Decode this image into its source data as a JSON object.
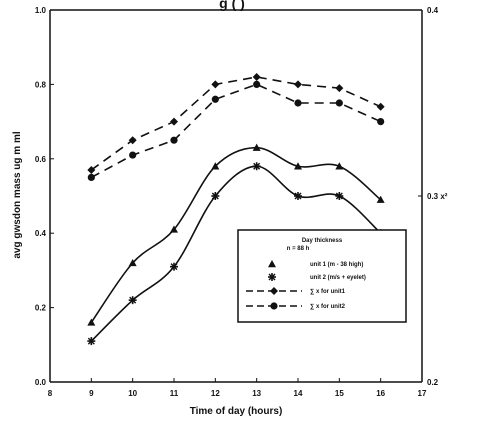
{
  "chart_data": {
    "type": "line",
    "title": "g (  )",
    "xlabel": "Time of day (hours)",
    "ylabel": "avg gwsdon mass ug m ml",
    "y2label": "0.3 x²",
    "xlim": [
      8,
      17
    ],
    "ylim": [
      0,
      1.0
    ],
    "y2lim": [
      0.2,
      0.4
    ],
    "x_ticks": [
      8,
      9,
      10,
      11,
      12,
      13,
      14,
      15,
      16,
      17
    ],
    "x_tick_labels": [
      "8",
      "9",
      "10",
      "11",
      "12",
      "13",
      "14",
      "15",
      "16",
      "17"
    ],
    "y_ticks": [
      0,
      0.2,
      0.4,
      0.6,
      0.8,
      1.0
    ],
    "y_tick_labels": [
      "0.0",
      "0.2",
      "0.4",
      "0.6",
      "0.8",
      "1.0"
    ],
    "y2_ticks": [
      0.2,
      0.3,
      0.4
    ],
    "y2_tick_labels": [
      "0.2",
      "0.3 x²",
      "0.4"
    ],
    "grid": false,
    "legend_position": "lower-right",
    "legend_title": "Day thickness",
    "legend_subtitle": "n = 88 h",
    "series": [
      {
        "name": "unit 1 (m - 38 high)",
        "marker": "triangle",
        "dash": "solid",
        "x": [
          9,
          10,
          11,
          12,
          13,
          14,
          15,
          16
        ],
        "y": [
          0.16,
          0.32,
          0.41,
          0.58,
          0.63,
          0.58,
          0.58,
          0.49
        ]
      },
      {
        "name": "unit 2 (m/s + eyelet)",
        "marker": "star",
        "dash": "solid",
        "x": [
          9,
          10,
          11,
          12,
          13,
          14,
          15,
          16
        ],
        "y": [
          0.11,
          0.22,
          0.31,
          0.5,
          0.58,
          0.5,
          0.5,
          0.4
        ]
      },
      {
        "name": "∑ x for unit1",
        "marker": "diamond",
        "dash": "dashed",
        "x": [
          9,
          10,
          11,
          12,
          13,
          14,
          15,
          16
        ],
        "y": [
          0.57,
          0.65,
          0.7,
          0.8,
          0.82,
          0.8,
          0.79,
          0.74
        ]
      },
      {
        "name": "∑ x for unit2",
        "marker": "circle",
        "dash": "dashed",
        "x": [
          9,
          10,
          11,
          12,
          13,
          14,
          15,
          16
        ],
        "y": [
          0.55,
          0.61,
          0.65,
          0.76,
          0.8,
          0.75,
          0.75,
          0.7
        ]
      }
    ]
  }
}
